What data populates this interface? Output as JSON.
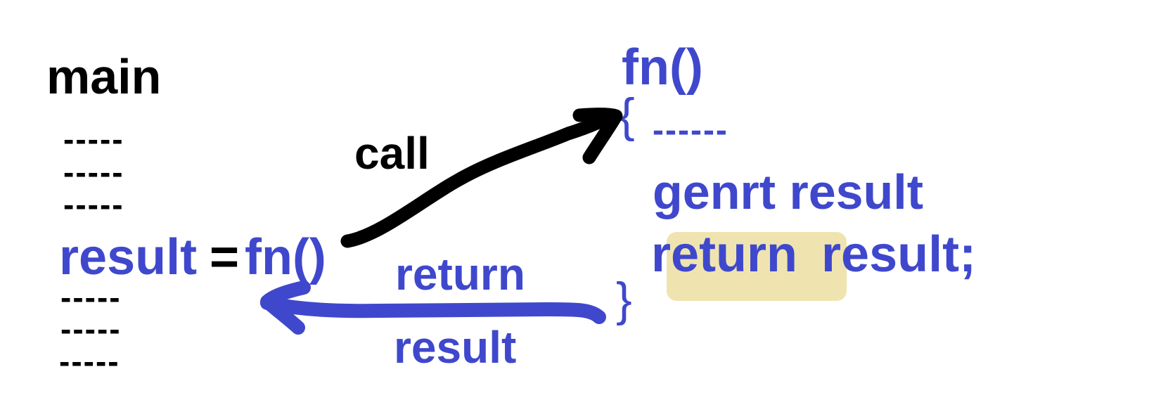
{
  "main": {
    "title": "main",
    "lines_before": [
      "-----",
      "-----",
      "-----"
    ],
    "call_left": "result",
    "call_equals": "=",
    "call_right": "fn()",
    "lines_after": [
      "-----",
      "-----",
      "-----"
    ]
  },
  "fn": {
    "signature": "fn()",
    "open_brace": "{",
    "first_line": "------",
    "body_line": "genrt result",
    "return_keyword": "return",
    "return_value": "result;",
    "close_brace": "}"
  },
  "arrows": {
    "call_label": "call",
    "return_label_line1": "return",
    "return_label_line2": "result"
  },
  "colors": {
    "text_black": "#000000",
    "text_blue": "#3f48cc",
    "highlight": "#efe4b0",
    "background": "#ffffff"
  }
}
